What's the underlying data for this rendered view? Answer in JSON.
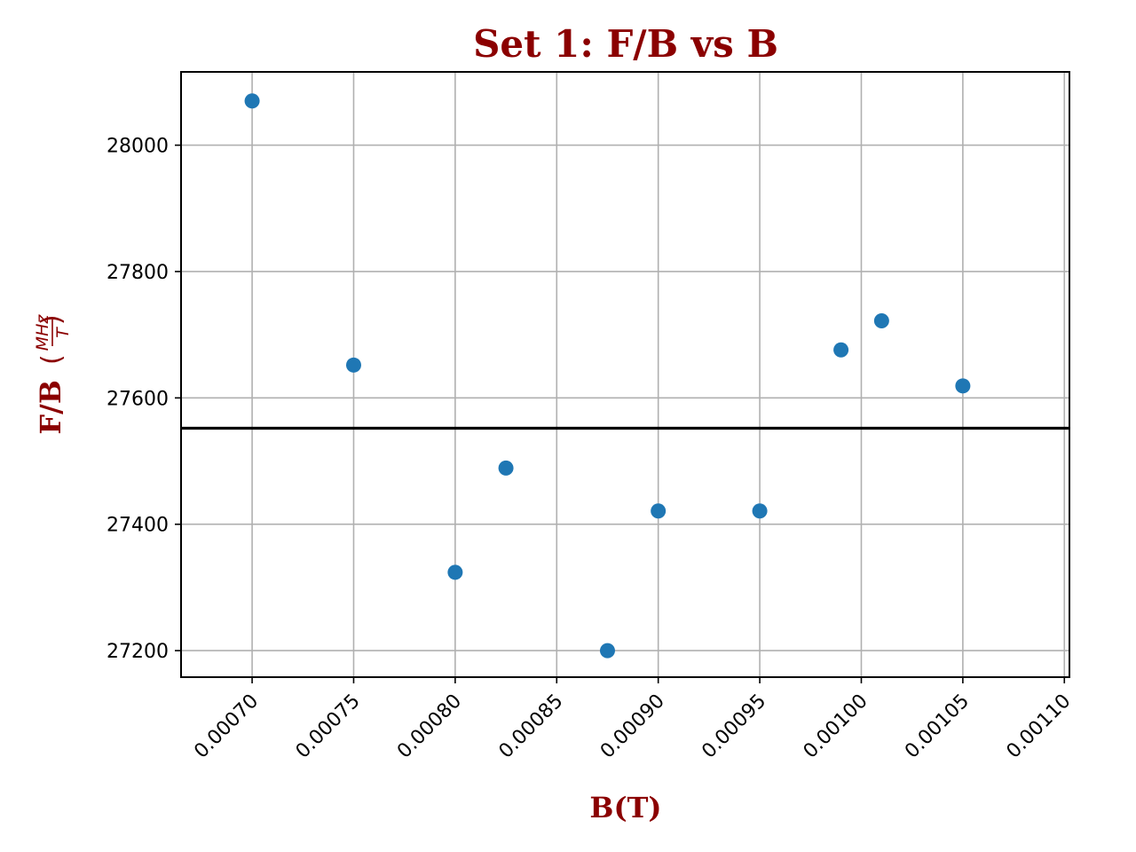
{
  "chart_data": {
    "type": "scatter",
    "title": "Set 1: F/B vs B",
    "xlabel": "B(T)",
    "ylabel": "F/B",
    "ylabel_unit_numerator": "MHz",
    "ylabel_unit_denominator": "T",
    "xlim": [
      0.000665,
      0.0011025
    ],
    "ylim": [
      27158,
      28116
    ],
    "x_ticks": [
      0.0007,
      0.00075,
      0.0008,
      0.00085,
      0.0009,
      0.00095,
      0.001,
      0.00105,
      0.0011
    ],
    "x_tick_labels": [
      "0.00070",
      "0.00075",
      "0.00080",
      "0.00085",
      "0.00090",
      "0.00095",
      "0.00100",
      "0.00105",
      "0.00110"
    ],
    "y_ticks": [
      27200,
      27400,
      27600,
      27800,
      28000
    ],
    "y_tick_labels": [
      "27200",
      "27400",
      "27600",
      "27800",
      "28000"
    ],
    "grid": true,
    "points": [
      {
        "x": 0.0007,
        "y": 28070
      },
      {
        "x": 0.00075,
        "y": 27652
      },
      {
        "x": 0.0008,
        "y": 27324
      },
      {
        "x": 0.000825,
        "y": 27489
      },
      {
        "x": 0.000875,
        "y": 27200
      },
      {
        "x": 0.0009,
        "y": 27421
      },
      {
        "x": 0.00095,
        "y": 27421
      },
      {
        "x": 0.00099,
        "y": 27676
      },
      {
        "x": 0.00101,
        "y": 27722
      },
      {
        "x": 0.00105,
        "y": 27619
      }
    ],
    "mean_line": 27552,
    "colors": {
      "points": "#1f77b4",
      "mean_line": "#000000",
      "labels": "#8b0000",
      "grid": "#b0b0b0"
    }
  }
}
